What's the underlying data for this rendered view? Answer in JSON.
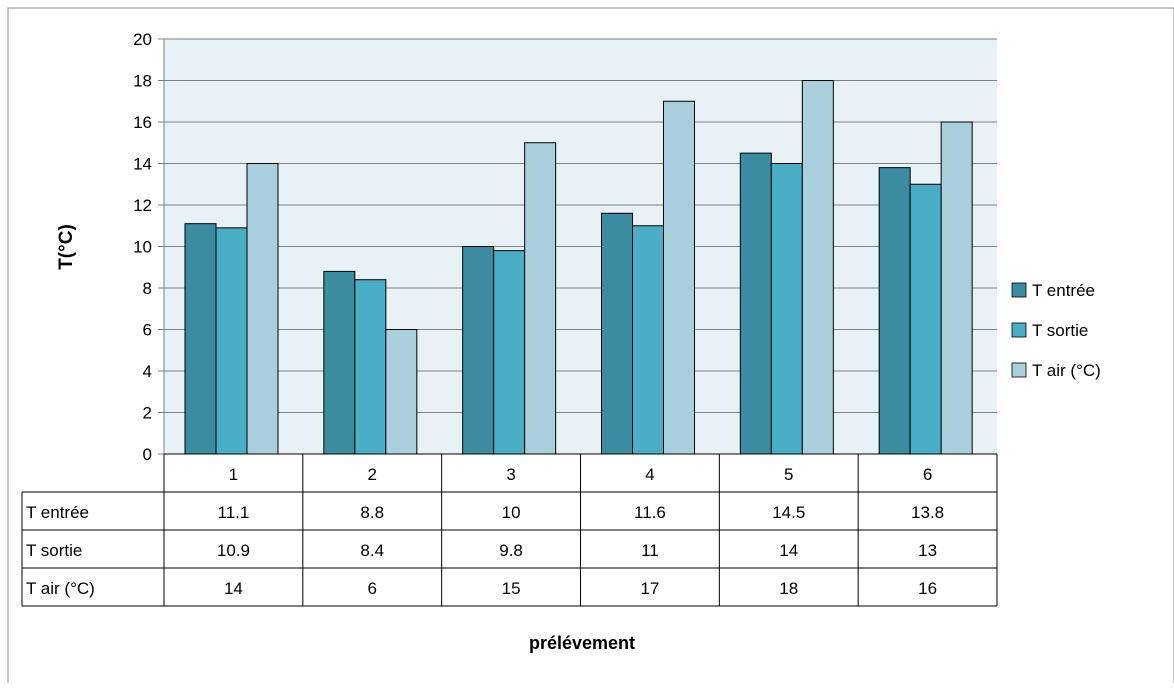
{
  "chart_data": {
    "type": "bar",
    "categories": [
      "1",
      "2",
      "3",
      "4",
      "5",
      "6"
    ],
    "series": [
      {
        "name": "T entrée",
        "values": [
          11.1,
          8.8,
          10,
          11.6,
          14.5,
          13.8
        ],
        "color": "#3b8ba1"
      },
      {
        "name": "T sortie",
        "values": [
          10.9,
          8.4,
          9.8,
          11,
          14,
          13
        ],
        "color": "#4aadc6"
      },
      {
        "name": "T air (°C)",
        "values": [
          14,
          6,
          15,
          17,
          18,
          16
        ],
        "color": "#a9cfdd"
      }
    ],
    "table": {
      "rows": [
        {
          "label": "T entrée",
          "values": [
            "11.1",
            "8.8",
            "10",
            "11.6",
            "14.5",
            "13.8"
          ]
        },
        {
          "label": "T sortie",
          "values": [
            "10.9",
            "8.4",
            "9.8",
            "11",
            "14",
            "13"
          ]
        },
        {
          "label": "T air (°C)",
          "values": [
            "14",
            "6",
            "15",
            "17",
            "18",
            "16"
          ]
        }
      ]
    },
    "ylabel": "T(°C)",
    "xlabel": "prélévement",
    "ylim": [
      0,
      20
    ],
    "yticks": [
      "0",
      "2",
      "4",
      "6",
      "8",
      "10",
      "12",
      "14",
      "16",
      "18",
      "20"
    ],
    "grid": true,
    "legend": "right",
    "plot_background": "#e8f1f5"
  }
}
